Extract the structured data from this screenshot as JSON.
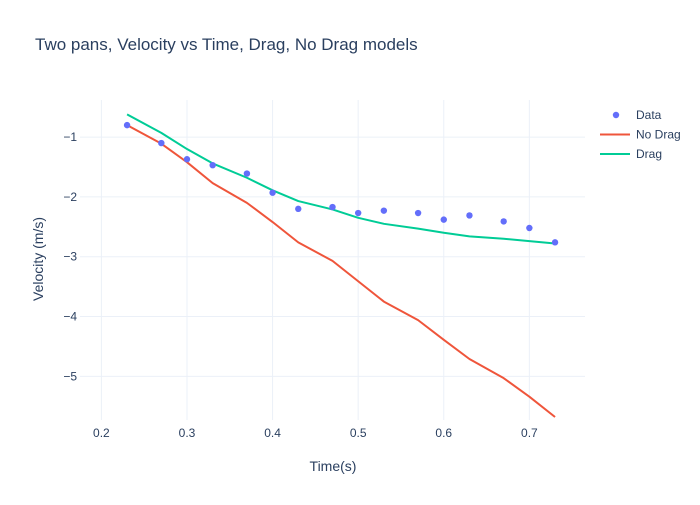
{
  "colors": {
    "data": "#636efa",
    "no_drag": "#ef553b",
    "drag": "#00cc96",
    "grid": "#ebf0f8",
    "text": "#2a3f5f"
  },
  "chart_data": {
    "type": "line",
    "title": "Two pans, Velocity vs Time, Drag, No Drag models",
    "xlabel": "Time(s)",
    "ylabel": "Velocity (m/s)",
    "xlim": [
      0.175,
      0.765
    ],
    "ylim": [
      -5.73,
      -0.38
    ],
    "xticks": [
      0.2,
      0.3,
      0.4,
      0.5,
      0.6,
      0.7
    ],
    "xtick_labels": [
      "0.2",
      "0.3",
      "0.4",
      "0.5",
      "0.6",
      "0.7"
    ],
    "yticks": [
      -1,
      -2,
      -3,
      -4,
      -5
    ],
    "ytick_labels": [
      "−1",
      "−2",
      "−3",
      "−4",
      "−5"
    ],
    "grid": true,
    "legend_position": "top-right",
    "series": [
      {
        "name": "Data",
        "mode": "markers",
        "color_key": "data",
        "x": [
          0.23,
          0.27,
          0.3,
          0.33,
          0.37,
          0.4,
          0.43,
          0.47,
          0.5,
          0.53,
          0.57,
          0.6,
          0.63,
          0.67,
          0.7,
          0.73
        ],
        "y": [
          -0.8,
          -1.1,
          -1.37,
          -1.47,
          -1.61,
          -1.93,
          -2.2,
          -2.17,
          -2.27,
          -2.23,
          -2.27,
          -2.38,
          -2.31,
          -2.41,
          -2.52,
          -2.76
        ]
      },
      {
        "name": "No Drag",
        "mode": "lines",
        "color_key": "no_drag",
        "x": [
          0.23,
          0.27,
          0.3,
          0.33,
          0.37,
          0.4,
          0.43,
          0.47,
          0.5,
          0.53,
          0.57,
          0.6,
          0.63,
          0.67,
          0.7,
          0.73
        ],
        "y": [
          -0.8,
          -1.11,
          -1.42,
          -1.77,
          -2.1,
          -2.42,
          -2.76,
          -3.07,
          -3.41,
          -3.75,
          -4.06,
          -4.39,
          -4.71,
          -5.03,
          -5.34,
          -5.68
        ]
      },
      {
        "name": "Drag",
        "mode": "lines",
        "color_key": "drag",
        "x": [
          0.23,
          0.27,
          0.3,
          0.33,
          0.37,
          0.4,
          0.43,
          0.47,
          0.5,
          0.53,
          0.57,
          0.6,
          0.63,
          0.67,
          0.7,
          0.73
        ],
        "y": [
          -0.62,
          -0.93,
          -1.2,
          -1.44,
          -1.68,
          -1.89,
          -2.07,
          -2.21,
          -2.35,
          -2.45,
          -2.53,
          -2.6,
          -2.66,
          -2.7,
          -2.74,
          -2.78
        ]
      }
    ]
  }
}
